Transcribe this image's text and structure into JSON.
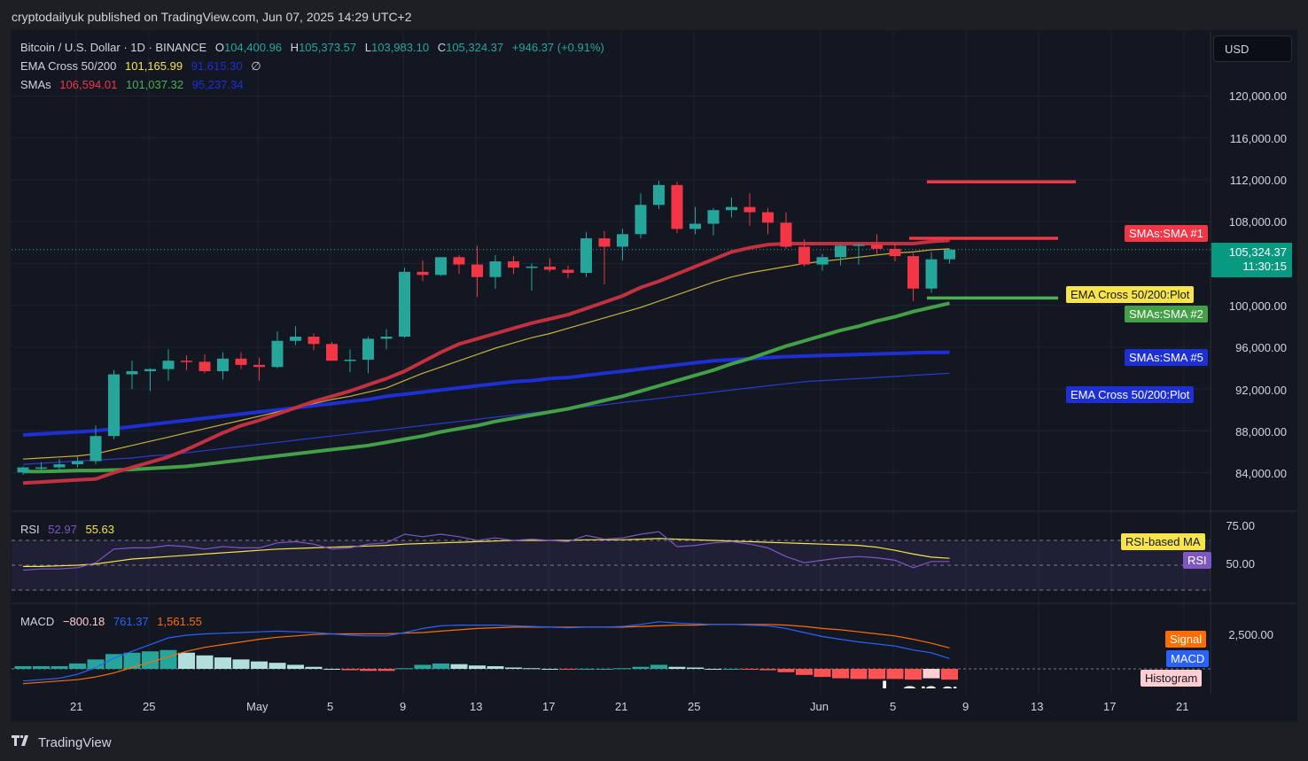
{
  "header": {
    "published": "cryptodailyuk published on TradingView.com, Jun 07, 2025 14:29 UTC+2"
  },
  "legend": {
    "symbol": "Bitcoin / U.S. Dollar · 1D · BINANCE",
    "o_label": "O",
    "o": "104,400.96",
    "h_label": "H",
    "h": "105,373.57",
    "l_label": "L",
    "l": "103,983.10",
    "c_label": "C",
    "c": "105,324.37",
    "change": "+946.37 (+0.91%)",
    "ema_title": "EMA Cross 50/200",
    "ema1": "101,165.99",
    "ema2": "91,615.30",
    "ema_sym": "∅",
    "sma_title": "SMAs",
    "sma1": "106,594.01",
    "sma2": "101,037.32",
    "sma3": "95,237.34",
    "rsi_title": "RSI",
    "rsi": "52.97",
    "rsi_ma": "55.63",
    "macd_title": "MACD",
    "macd_hist": "−800.18",
    "macd_line": "761.37",
    "macd_signal": "1,561.55"
  },
  "currency_button": "USD",
  "price_axis": [
    "120,000.00",
    "116,000.00",
    "112,000.00",
    "108,000.00",
    "100,000.00",
    "96,000.00",
    "92,000.00",
    "88,000.00",
    "84,000.00"
  ],
  "current_price": {
    "price": "105,324.37",
    "countdown": "11:30:15"
  },
  "tags": {
    "sma1": "SMAs:SMA #1",
    "ema_plot_yellow": "EMA Cross 50/200:Plot",
    "sma2": "SMAs:SMA #2",
    "sma5": "SMAs:SMA #5",
    "ema_plot_blue": "EMA Cross 50/200:Plot",
    "rsi_ma": "RSI-based MA",
    "rsi": "RSI",
    "signal": "Signal",
    "macd": "MACD",
    "histogram": "Histogram"
  },
  "rsi_axis": [
    "75.00",
    "50.00"
  ],
  "macd_axis": [
    "2,500.00"
  ],
  "x_axis": [
    "21",
    "25",
    "May",
    "5",
    "9",
    "13",
    "17",
    "21",
    "25",
    "Jun",
    "5",
    "9",
    "13",
    "17",
    "21"
  ],
  "overlay_text": "Long",
  "footer": {
    "brand": "TradingView"
  },
  "colors": {
    "up": "#26a69a",
    "down": "#f23645",
    "sma1": "#c2313f",
    "sma2": "#43a047",
    "sma5": "#1e2fd6",
    "ema_fast": "#c9b03a",
    "ema_slow": "#2a3bd0",
    "rsi": "#7e57c2",
    "macd": "#2962ff",
    "signal": "#ff6d00"
  },
  "chart_data": {
    "type": "candlestick",
    "price_ylim": [
      82000,
      122000
    ],
    "candles": [
      {
        "x": "Apr 17",
        "o": 84020,
        "h": 84600,
        "l": 83800,
        "c": 84500
      },
      {
        "x": "Apr 18",
        "o": 84500,
        "h": 85000,
        "l": 84200,
        "c": 84500
      },
      {
        "x": "Apr 19",
        "o": 84500,
        "h": 85300,
        "l": 84000,
        "c": 84800
      },
      {
        "x": "Apr 20",
        "o": 84800,
        "h": 85500,
        "l": 84500,
        "c": 85100
      },
      {
        "x": "Apr 21",
        "o": 85100,
        "h": 88500,
        "l": 84800,
        "c": 87500
      },
      {
        "x": "Apr 22",
        "o": 87500,
        "h": 93800,
        "l": 87200,
        "c": 93400
      },
      {
        "x": "Apr 23",
        "o": 93400,
        "h": 94700,
        "l": 92000,
        "c": 93700
      },
      {
        "x": "Apr 24",
        "o": 93700,
        "h": 94000,
        "l": 91800,
        "c": 93900
      },
      {
        "x": "Apr 25",
        "o": 93900,
        "h": 95800,
        "l": 92800,
        "c": 94700
      },
      {
        "x": "Apr 26",
        "o": 94700,
        "h": 95200,
        "l": 93800,
        "c": 94600
      },
      {
        "x": "Apr 27",
        "o": 94600,
        "h": 95300,
        "l": 93500,
        "c": 93700
      },
      {
        "x": "Apr 28",
        "o": 93700,
        "h": 95500,
        "l": 92900,
        "c": 94900
      },
      {
        "x": "Apr 29",
        "o": 94900,
        "h": 95500,
        "l": 93900,
        "c": 94300
      },
      {
        "x": "Apr 30",
        "o": 94300,
        "h": 95000,
        "l": 92800,
        "c": 94100
      },
      {
        "x": "May 1",
        "o": 94100,
        "h": 97500,
        "l": 94000,
        "c": 96600
      },
      {
        "x": "May 2",
        "o": 96600,
        "h": 98000,
        "l": 96200,
        "c": 97000
      },
      {
        "x": "May 3",
        "o": 97000,
        "h": 97300,
        "l": 95700,
        "c": 96300
      },
      {
        "x": "May 4",
        "o": 96300,
        "h": 96500,
        "l": 94800,
        "c": 94700
      },
      {
        "x": "May 5",
        "o": 94700,
        "h": 95800,
        "l": 93600,
        "c": 94800
      },
      {
        "x": "May 6",
        "o": 94800,
        "h": 97000,
        "l": 93500,
        "c": 96800
      },
      {
        "x": "May 7",
        "o": 96800,
        "h": 97700,
        "l": 95800,
        "c": 97000
      },
      {
        "x": "May 8",
        "o": 97000,
        "h": 103600,
        "l": 96900,
        "c": 103200
      },
      {
        "x": "May 9",
        "o": 103200,
        "h": 104300,
        "l": 102300,
        "c": 102900
      },
      {
        "x": "May 10",
        "o": 102900,
        "h": 104600,
        "l": 102800,
        "c": 104600
      },
      {
        "x": "May 11",
        "o": 104600,
        "h": 104800,
        "l": 103000,
        "c": 103900
      },
      {
        "x": "May 12",
        "o": 103900,
        "h": 105700,
        "l": 100800,
        "c": 102700
      },
      {
        "x": "May 13",
        "o": 102700,
        "h": 104800,
        "l": 101600,
        "c": 104200
      },
      {
        "x": "May 14",
        "o": 104200,
        "h": 104700,
        "l": 103000,
        "c": 103600
      },
      {
        "x": "May 15",
        "o": 103600,
        "h": 104000,
        "l": 101400,
        "c": 103700
      },
      {
        "x": "May 16",
        "o": 103700,
        "h": 104500,
        "l": 103200,
        "c": 103400
      },
      {
        "x": "May 17",
        "o": 103400,
        "h": 103800,
        "l": 102600,
        "c": 103100
      },
      {
        "x": "May 18",
        "o": 103100,
        "h": 107000,
        "l": 102700,
        "c": 106400
      },
      {
        "x": "May 19",
        "o": 106400,
        "h": 107100,
        "l": 102000,
        "c": 105600
      },
      {
        "x": "May 20",
        "o": 105600,
        "h": 107300,
        "l": 104300,
        "c": 106800
      },
      {
        "x": "May 21",
        "o": 106800,
        "h": 110700,
        "l": 106400,
        "c": 109600
      },
      {
        "x": "May 22",
        "o": 109600,
        "h": 111900,
        "l": 109200,
        "c": 111500
      },
      {
        "x": "May 23",
        "o": 111500,
        "h": 111800,
        "l": 106900,
        "c": 107300
      },
      {
        "x": "May 24",
        "o": 107300,
        "h": 109400,
        "l": 106800,
        "c": 107800
      },
      {
        "x": "May 25",
        "o": 107800,
        "h": 109300,
        "l": 106700,
        "c": 109100
      },
      {
        "x": "May 26",
        "o": 109100,
        "h": 110300,
        "l": 108400,
        "c": 109400
      },
      {
        "x": "May 27",
        "o": 109400,
        "h": 110700,
        "l": 107600,
        "c": 108900
      },
      {
        "x": "May 28",
        "o": 108900,
        "h": 109300,
        "l": 106800,
        "c": 107900
      },
      {
        "x": "May 29",
        "o": 107900,
        "h": 108900,
        "l": 105400,
        "c": 105600
      },
      {
        "x": "May 30",
        "o": 105600,
        "h": 106300,
        "l": 103700,
        "c": 103900
      },
      {
        "x": "May 31",
        "o": 103900,
        "h": 104900,
        "l": 103300,
        "c": 104600
      },
      {
        "x": "Jun 1",
        "o": 104600,
        "h": 105800,
        "l": 103800,
        "c": 105700
      },
      {
        "x": "Jun 2",
        "o": 105700,
        "h": 105900,
        "l": 103900,
        "c": 105800
      },
      {
        "x": "Jun 3",
        "o": 105800,
        "h": 106800,
        "l": 104900,
        "c": 105400
      },
      {
        "x": "Jun 4",
        "o": 105400,
        "h": 105900,
        "l": 104200,
        "c": 104700
      },
      {
        "x": "Jun 5",
        "o": 104700,
        "h": 105000,
        "l": 100400,
        "c": 101600
      },
      {
        "x": "Jun 6",
        "o": 101600,
        "h": 105100,
        "l": 101200,
        "c": 104400
      },
      {
        "x": "Jun 7",
        "o": 104400.96,
        "h": 105373.57,
        "l": 103983.1,
        "c": 105324.37
      }
    ],
    "sma1": [
      83000,
      83100,
      83200,
      83300,
      83400,
      84000,
      84500,
      85000,
      85500,
      86200,
      87000,
      87800,
      88500,
      89000,
      89600,
      90200,
      90800,
      91300,
      91800,
      92400,
      93000,
      93700,
      94600,
      95500,
      96300,
      96800,
      97300,
      97800,
      98300,
      98700,
      99100,
      99700,
      100300,
      100900,
      101700,
      102300,
      103000,
      103700,
      104400,
      105100,
      105500,
      105800,
      105900,
      105900,
      105900,
      105900,
      105900,
      105900,
      105900,
      105900,
      106100,
      106200
    ],
    "sma2": [
      84100,
      84100,
      84150,
      84200,
      84200,
      84250,
      84300,
      84400,
      84500,
      84600,
      84800,
      85000,
      85200,
      85400,
      85600,
      85800,
      86000,
      86200,
      86400,
      86600,
      86900,
      87200,
      87500,
      87900,
      88200,
      88500,
      88900,
      89200,
      89500,
      89800,
      90100,
      90500,
      90900,
      91300,
      91800,
      92300,
      92800,
      93300,
      93800,
      94400,
      94900,
      95500,
      96100,
      96600,
      97100,
      97600,
      98000,
      98500,
      98900,
      99400,
      99800,
      100200
    ],
    "sma5": [
      87600,
      87700,
      87800,
      87900,
      88000,
      88200,
      88400,
      88600,
      88800,
      89000,
      89200,
      89400,
      89600,
      89800,
      90000,
      90200,
      90400,
      90600,
      90800,
      91000,
      91300,
      91500,
      91700,
      91900,
      92100,
      92300,
      92500,
      92700,
      92800,
      93000,
      93100,
      93300,
      93500,
      93700,
      93900,
      94100,
      94300,
      94500,
      94700,
      94800,
      94900,
      95000,
      95100,
      95150,
      95200,
      95250,
      95300,
      95350,
      95400,
      95450,
      95500,
      95500
    ],
    "ema_fast": [
      85300,
      85400,
      85500,
      85600,
      85800,
      86200,
      86600,
      87000,
      87400,
      87800,
      88200,
      88600,
      89000,
      89400,
      89800,
      90200,
      90600,
      91000,
      91300,
      91700,
      92100,
      92800,
      93500,
      94100,
      94700,
      95300,
      95900,
      96400,
      96900,
      97300,
      97800,
      98300,
      98800,
      99300,
      99800,
      100400,
      101000,
      101600,
      102200,
      102700,
      103100,
      103400,
      103700,
      104000,
      104200,
      104400,
      104600,
      104800,
      105000,
      105100,
      105300,
      105400
    ],
    "ema_slow": [
      84800,
      84900,
      85000,
      85100,
      85200,
      85300,
      85400,
      85600,
      85700,
      85900,
      86100,
      86300,
      86500,
      86700,
      86900,
      87100,
      87300,
      87500,
      87700,
      87900,
      88100,
      88300,
      88500,
      88700,
      88900,
      89100,
      89300,
      89500,
      89700,
      89900,
      90100,
      90300,
      90500,
      90700,
      90900,
      91100,
      91300,
      91500,
      91700,
      91900,
      92100,
      92300,
      92500,
      92700,
      92800,
      92900,
      93000,
      93100,
      93200,
      93300,
      93400,
      93500
    ],
    "projection_lines": {
      "red_upper": 111800,
      "red_mid": 106400,
      "green": 100700
    },
    "rsi_ylim": [
      35,
      80
    ],
    "rsi": [
      46,
      47,
      47,
      48,
      52,
      63,
      64,
      64,
      66,
      65,
      63,
      65,
      64,
      64,
      68,
      69,
      67,
      63,
      64,
      67,
      68,
      75,
      73,
      75,
      73,
      70,
      72,
      70,
      71,
      70,
      69,
      74,
      71,
      72,
      75,
      77,
      65,
      66,
      68,
      69,
      67,
      64,
      57,
      52,
      54,
      56,
      57,
      56,
      54,
      48,
      53,
      53
    ],
    "rsi_ma": [
      49,
      49,
      49.5,
      50,
      51,
      53,
      55,
      56,
      57,
      58,
      59,
      60,
      61,
      62,
      63,
      63.5,
      64,
      64.5,
      65,
      65.5,
      66,
      67,
      67.5,
      68,
      68.5,
      69,
      69.5,
      70,
      70,
      70,
      70,
      70.5,
      70.5,
      70.5,
      71,
      71.5,
      71,
      70.5,
      70,
      69.5,
      69,
      68.5,
      68,
      67.5,
      67,
      66.5,
      66,
      64.5,
      62,
      59,
      56.5,
      55.6
    ],
    "macd_ylim": [
      -1500,
      4500
    ],
    "macd_line": [
      -900,
      -800,
      -700,
      -400,
      100,
      800,
      1300,
      1800,
      2300,
      2500,
      2600,
      2650,
      2700,
      2750,
      2800,
      2750,
      2700,
      2600,
      2500,
      2450,
      2450,
      2700,
      3000,
      3200,
      3250,
      3250,
      3250,
      3200,
      3150,
      3100,
      3050,
      3100,
      3100,
      3150,
      3300,
      3500,
      3400,
      3350,
      3300,
      3300,
      3250,
      3200,
      3000,
      2700,
      2400,
      2200,
      2000,
      1850,
      1700,
      1400,
      1200,
      761.37
    ],
    "macd_signal": [
      -1100,
      -1000,
      -900,
      -800,
      -600,
      -300,
      100,
      500,
      900,
      1300,
      1600,
      1800,
      2000,
      2200,
      2350,
      2450,
      2550,
      2600,
      2600,
      2600,
      2600,
      2650,
      2700,
      2800,
      2900,
      3000,
      3050,
      3100,
      3100,
      3100,
      3100,
      3100,
      3100,
      3100,
      3150,
      3200,
      3250,
      3250,
      3300,
      3300,
      3300,
      3300,
      3250,
      3150,
      3000,
      2900,
      2750,
      2600,
      2450,
      2200,
      1900,
      1561.55
    ],
    "macd_hist": [
      200,
      200,
      200,
      400,
      700,
      1100,
      1200,
      1300,
      1400,
      1200,
      1000,
      850,
      700,
      550,
      450,
      300,
      150,
      0,
      -100,
      -150,
      -150,
      50,
      300,
      400,
      350,
      250,
      200,
      100,
      50,
      0,
      -50,
      0,
      0,
      50,
      150,
      300,
      150,
      100,
      0,
      0,
      -50,
      -100,
      -250,
      -450,
      -600,
      -700,
      -750,
      -750,
      -750,
      -800,
      -700,
      -800.18
    ]
  }
}
